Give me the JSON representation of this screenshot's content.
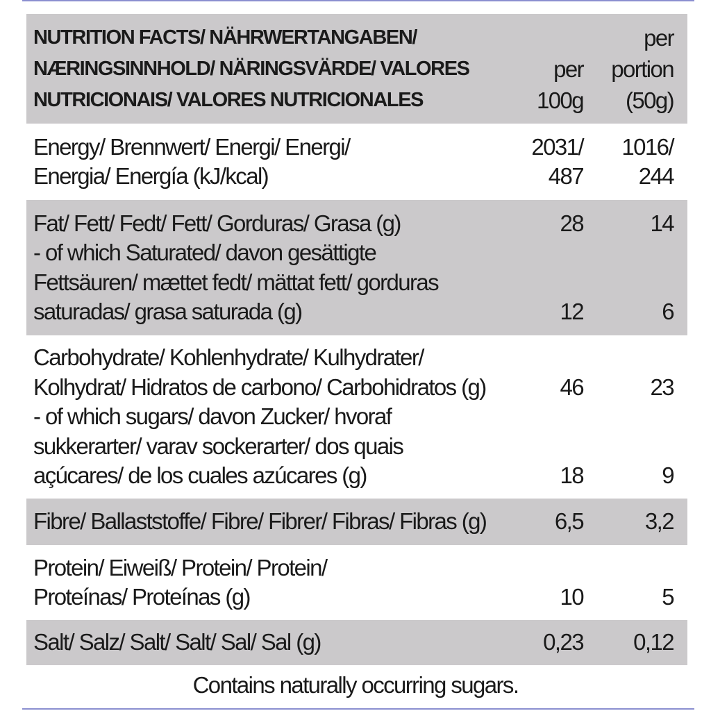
{
  "header": {
    "lines": [
      {
        "label": "NUTRITION FACTS/ NÄHRWERTANGABEN/",
        "per100": "",
        "portion": "per"
      },
      {
        "label": "NÆRINGSINNHOLD/ NÄRINGSVÄRDE/ VALORES",
        "per100": "per",
        "portion": "portion"
      },
      {
        "label": "NUTRICIONAIS/ VALORES NUTRICIONALES",
        "per100": "100g",
        "portion": "(50g)"
      }
    ]
  },
  "rows": [
    {
      "lines": [
        {
          "label": "Energy/ Brennwert/ Energi/ Energi/",
          "per100": "2031/",
          "portion": "1016/"
        },
        {
          "label": "Energia/ Energía (kJ/kcal)",
          "per100": "487",
          "portion": "244"
        }
      ]
    },
    {
      "lines": [
        {
          "label": "Fat/ Fett/ Fedt/ Fett/ Gorduras/ Grasa (g)",
          "per100": "28",
          "portion": "14"
        },
        {
          "label": "- of which Saturated/ davon gesättigte",
          "per100": "",
          "portion": ""
        },
        {
          "label": "Fettsäuren/ mættet fedt/ mättat fett/ gorduras",
          "per100": "",
          "portion": ""
        },
        {
          "label": "saturadas/ grasa saturada (g)",
          "per100": "12",
          "portion": "6"
        }
      ]
    },
    {
      "lines": [
        {
          "label": "Carbohydrate/ Kohlenhydrate/ Kulhydrater/",
          "per100": "",
          "portion": ""
        },
        {
          "label": "Kolhydrat/ Hidratos de carbono/ Carbohidratos (g)",
          "per100": "46",
          "portion": "23"
        },
        {
          "label": "- of which sugars/ davon Zucker/ hvoraf",
          "per100": "",
          "portion": ""
        },
        {
          "label": "sukkerarter/ varav sockerarter/ dos quais",
          "per100": "",
          "portion": ""
        },
        {
          "label": "açúcares/ de los cuales azúcares (g)",
          "per100": "18",
          "portion": "9"
        }
      ]
    },
    {
      "lines": [
        {
          "label": "Fibre/ Ballaststoffe/ Fibre/ Fibrer/ Fibras/ Fibras (g)",
          "per100": "6,5",
          "portion": "3,2"
        }
      ]
    },
    {
      "lines": [
        {
          "label": "Protein/ Eiweiß/ Protein/ Protein/",
          "per100": "",
          "portion": ""
        },
        {
          "label": "Proteínas/ Proteínas (g)",
          "per100": "10",
          "portion": "5"
        }
      ]
    },
    {
      "lines": [
        {
          "label": "Salt/ Salz/ Salt/ Salt/ Sal/ Sal (g)",
          "per100": "0,23",
          "portion": "0,12"
        }
      ]
    }
  ],
  "footnote": "Contains naturally occurring sugars.",
  "colors": {
    "row_shade": "#cbc9cb",
    "rule": "#8b8fd0"
  }
}
